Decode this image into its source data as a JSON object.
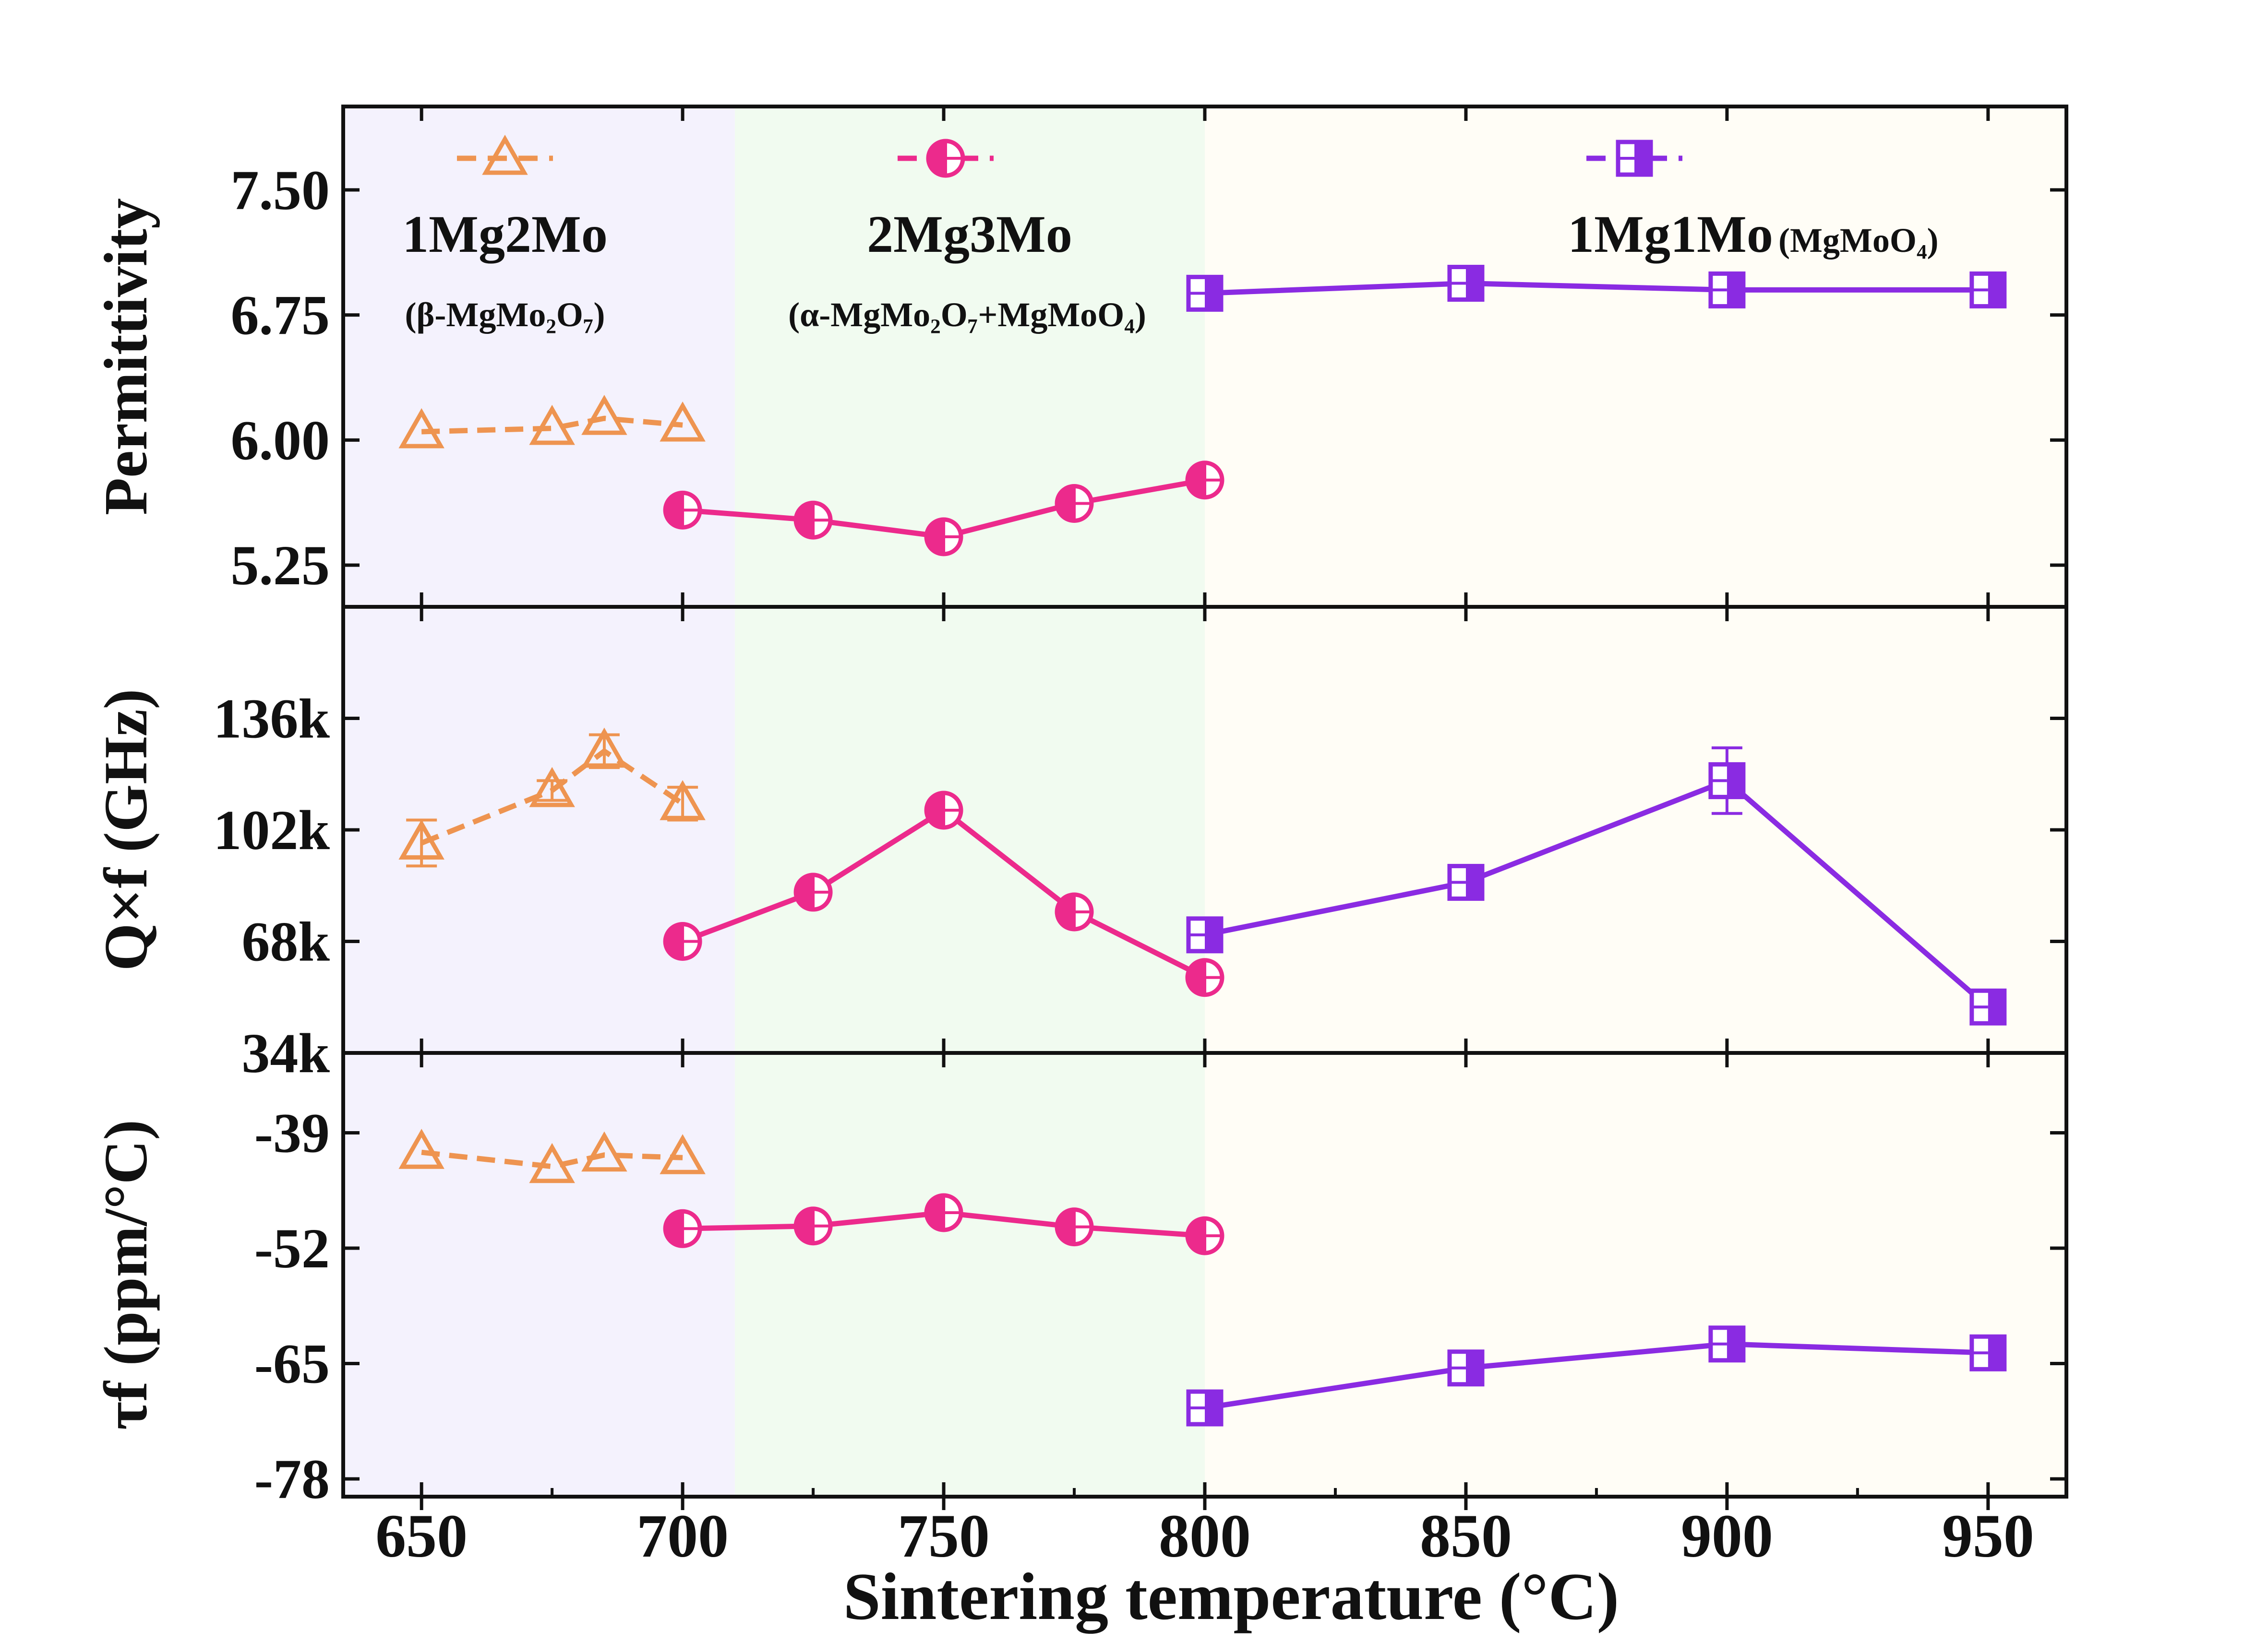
{
  "chart_data": {
    "type": "line",
    "xlabel": "Sintering temperature (°C)",
    "x_ticks": [
      "650",
      "700",
      "750",
      "800",
      "850",
      "900",
      "950"
    ],
    "xlim": [
      635,
      965
    ],
    "regions": [
      {
        "name": "1Mg2Mo",
        "from": 635,
        "to": 710,
        "color": "#f4f2fd"
      },
      {
        "name": "2Mg3Mo",
        "from": 710,
        "to": 800,
        "color": "#f1fbf0"
      },
      {
        "name": "1Mg1Mo",
        "from": 800,
        "to": 965,
        "color": "#fffdf6"
      }
    ],
    "legend": [
      {
        "series": "1Mg2Mo",
        "label": "1Mg2Mo",
        "sub_label": "(β-MgMo₂O₇)"
      },
      {
        "series": "2Mg3Mo",
        "label": "2Mg3Mo",
        "sub_label": "(α-MgMo₂O₇+MgMoO₄)"
      },
      {
        "series": "1Mg1Mo",
        "label": "1Mg1Mo",
        "sub_label": "(MgMoO₄)"
      }
    ],
    "series_styles": [
      {
        "name": "1Mg2Mo",
        "color": "#ee9450",
        "marker": "triangle",
        "dashed": true
      },
      {
        "name": "2Mg3Mo",
        "color": "#ec2a8c",
        "marker": "half-circle",
        "dashed": false
      },
      {
        "name": "1Mg1Mo",
        "color": "#8a2be2",
        "marker": "half-square",
        "dashed": false
      }
    ],
    "panels": [
      {
        "ylabel": "Permittivity",
        "ylim": [
          5.0,
          8.0
        ],
        "y_ticks": [
          5.25,
          6.0,
          6.75,
          7.5
        ],
        "y_tick_labels": [
          "5.25",
          "6.00",
          "6.75",
          "7.50"
        ],
        "series": [
          {
            "name": "1Mg2Mo",
            "x": [
              650,
              675,
              685,
              700
            ],
            "y": [
              6.05,
              6.07,
              6.13,
              6.09
            ]
          },
          {
            "name": "2Mg3Mo",
            "x": [
              700,
              725,
              750,
              775,
              800
            ],
            "y": [
              5.58,
              5.52,
              5.42,
              5.62,
              5.76
            ]
          },
          {
            "name": "1Mg1Mo",
            "x": [
              800,
              850,
              900,
              950
            ],
            "y": [
              6.88,
              6.94,
              6.9,
              6.9
            ]
          }
        ]
      },
      {
        "ylabel": "Q×f (GHz)",
        "ylim": [
          34000,
          170000
        ],
        "y_ticks": [
          34000,
          68000,
          102000,
          136000
        ],
        "y_tick_labels": [
          "34k",
          "68k",
          "102k",
          "136k"
        ],
        "series": [
          {
            "name": "1Mg2Mo",
            "x": [
              650,
              675,
              685,
              700
            ],
            "y": [
              98000,
              114000,
              126000,
              110000
            ],
            "err": [
              7000,
              3000,
              5000,
              5000
            ]
          },
          {
            "name": "2Mg3Mo",
            "x": [
              700,
              725,
              750,
              775,
              800
            ],
            "y": [
              68000,
              83000,
              108000,
              77000,
              57000
            ]
          },
          {
            "name": "1Mg1Mo",
            "x": [
              800,
              850,
              900,
              950
            ],
            "y": [
              70000,
              86000,
              117000,
              48000
            ],
            "err": [
              3000,
              3000,
              10000,
              2000
            ]
          }
        ]
      },
      {
        "ylabel": "τf (ppm/°C)",
        "ylim": [
          -80,
          -30
        ],
        "y_ticks": [
          -78,
          -65,
          -52,
          -39
        ],
        "y_tick_labels": [
          "-78",
          "-65",
          "-52",
          "-39"
        ],
        "series": [
          {
            "name": "1Mg2Mo",
            "x": [
              650,
              675,
              685,
              700
            ],
            "y": [
              -41.2,
              -42.8,
              -41.5,
              -41.8
            ]
          },
          {
            "name": "2Mg3Mo",
            "x": [
              700,
              725,
              750,
              775,
              800
            ],
            "y": [
              -49.8,
              -49.5,
              -48.0,
              -49.6,
              -50.6
            ]
          },
          {
            "name": "1Mg1Mo",
            "x": [
              800,
              850,
              900,
              950
            ],
            "y": [
              -70.0,
              -65.5,
              -62.8,
              -63.8
            ]
          }
        ]
      }
    ]
  }
}
